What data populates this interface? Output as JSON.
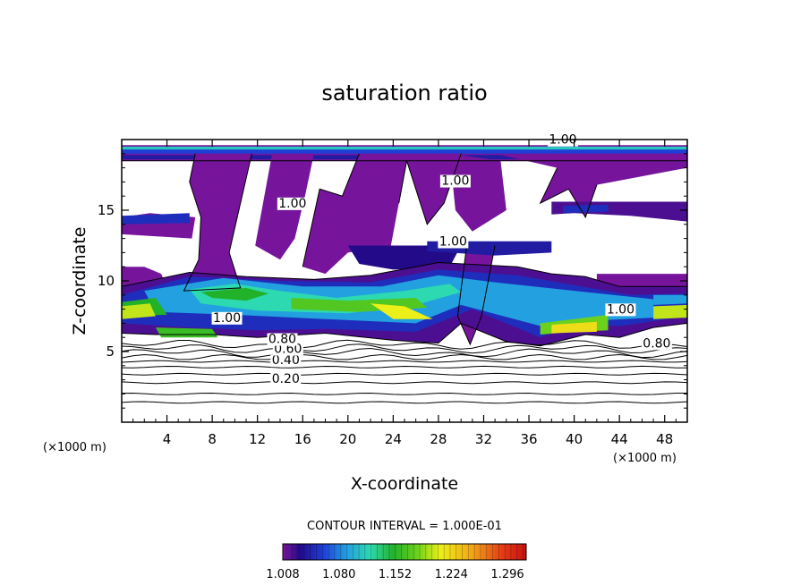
{
  "chart_data": {
    "type": "heatmap",
    "title": "saturation ratio",
    "xlabel": "X-coordinate",
    "ylabel": "Z-coordinate",
    "x_unit_left": "(×1000 m)",
    "x_unit_right": "(×1000 m)",
    "xlim": [
      0,
      50
    ],
    "ylim": [
      0,
      20
    ],
    "xticks": [
      "4",
      "8",
      "12",
      "16",
      "20",
      "24",
      "28",
      "32",
      "36",
      "40",
      "44",
      "48"
    ],
    "xtick_values": [
      4,
      8,
      12,
      16,
      20,
      24,
      28,
      32,
      36,
      40,
      44,
      48
    ],
    "yticks": [
      "5",
      "10",
      "15"
    ],
    "ytick_values": [
      5,
      10,
      15
    ],
    "contour_interval_label": "CONTOUR INTERVAL = 1.000E-01",
    "colorbar": {
      "min": 1.008,
      "max": 1.32,
      "tick_labels": [
        "1.008",
        "1.080",
        "1.152",
        "1.224",
        "1.296"
      ],
      "tick_values": [
        1.008,
        1.08,
        1.152,
        1.224,
        1.296
      ]
    },
    "contour_labels": [
      {
        "text": "0.20",
        "x": 14.5,
        "y": 2.8
      },
      {
        "text": "0.40",
        "x": 14.5,
        "y": 4.1
      },
      {
        "text": "0.60",
        "x": 14.7,
        "y": 4.9
      },
      {
        "text": "0.80",
        "x": 14.2,
        "y": 5.6
      },
      {
        "text": "0.80",
        "x": 47.3,
        "y": 5.3
      },
      {
        "text": "1.00",
        "x": 9.3,
        "y": 7.1
      },
      {
        "text": "1.00",
        "x": 44.1,
        "y": 7.7
      },
      {
        "text": "1.00",
        "x": 29.3,
        "y": 12.5
      },
      {
        "text": "1.00",
        "x": 29.5,
        "y": 16.8
      },
      {
        "text": "1.00",
        "x": 15.1,
        "y": 15.2
      },
      {
        "text": "1.00",
        "x": 39.0,
        "y": 19.7
      }
    ],
    "fields": {
      "colormap": [
        {
          "v": 1.008,
          "c": "#7e169e"
        },
        {
          "v": 1.03,
          "c": "#220a88"
        },
        {
          "v": 1.06,
          "c": "#1e3fd6"
        },
        {
          "v": 1.09,
          "c": "#23a0e0"
        },
        {
          "v": 1.12,
          "c": "#2cd9b0"
        },
        {
          "v": 1.15,
          "c": "#22b22a"
        },
        {
          "v": 1.18,
          "c": "#6ad11c"
        },
        {
          "v": 1.21,
          "c": "#ecef18"
        },
        {
          "v": 1.25,
          "c": "#f0a618"
        },
        {
          "v": 1.29,
          "c": "#e23a15"
        },
        {
          "v": 1.32,
          "c": "#c81212"
        }
      ]
    }
  }
}
